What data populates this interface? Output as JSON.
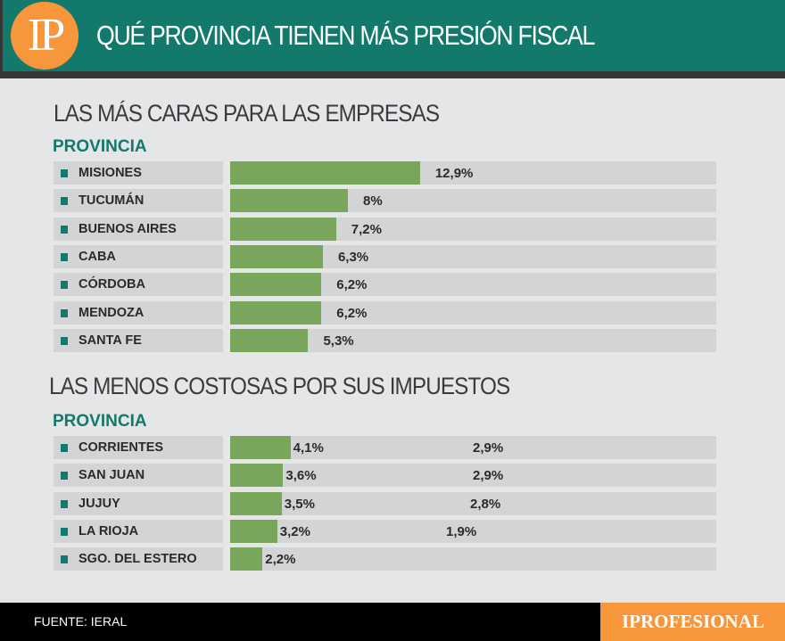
{
  "header": {
    "title": "QUÉ PROVINCIA TIENEN MÁS PRESIÓN FISCAL",
    "logo": "IP"
  },
  "chart_data": [
    {
      "type": "bar",
      "orientation": "horizontal",
      "title": "LAS MÁS CARAS PARA LAS EMPRESAS",
      "column_header": "PROVINCIA",
      "categories": [
        "MISIONES",
        "TUCUMÁN",
        "BUENOS AIRES",
        "CABA",
        "CÓRDOBA",
        "MENDOZA",
        "SANTA FE"
      ],
      "values": [
        12.9,
        8,
        7.2,
        6.3,
        6.2,
        6.2,
        5.3
      ],
      "labels": [
        "12,9%",
        "8%",
        "7,2%",
        "6,3%",
        "6,2%",
        "6,2%",
        "5,3%"
      ],
      "bar_color": "#79a65b"
    },
    {
      "type": "bar",
      "orientation": "horizontal",
      "title": "LAS MENOS COSTOSAS POR SUS IMPUESTOS",
      "column_header": "PROVINCIA",
      "categories": [
        "CORRIENTES",
        "SAN JUAN",
        "JUJUY",
        "LA RIOJA",
        "SGO. DEL ESTERO"
      ],
      "values": [
        4.1,
        3.6,
        3.5,
        3.2,
        2.2
      ],
      "labels": [
        "4,1%",
        "3,6%",
        "3,5%",
        "3,2%",
        "2,2%"
      ],
      "extra_labels": [
        "2,9%",
        "2,9%",
        "2,8%",
        "1,9%",
        ""
      ],
      "extra_values": [
        2.9,
        2.9,
        2.8,
        1.9,
        null
      ],
      "bar_color": "#79a65b"
    }
  ],
  "footer": {
    "source": "FUENTE: IERAL",
    "brand": "IPROFESIONAL"
  },
  "colors": {
    "header": "#12796b",
    "accent": "#f7963a",
    "bar": "#79a65b"
  }
}
